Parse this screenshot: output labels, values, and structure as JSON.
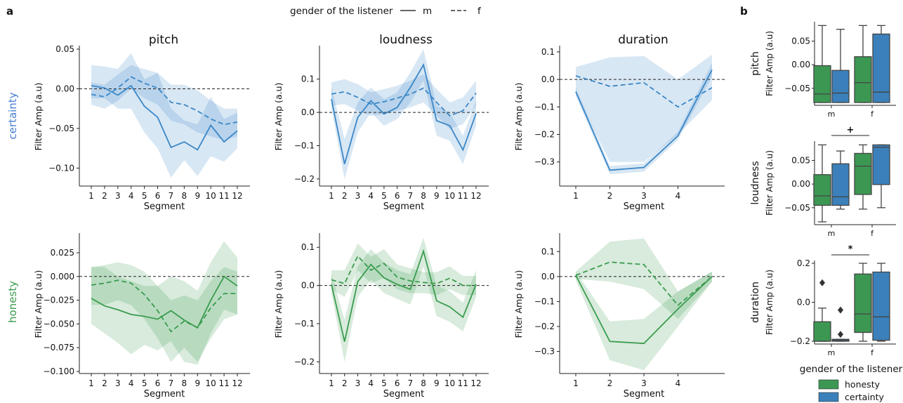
{
  "figure": {
    "panel_a_label": "a",
    "panel_b_label": "b",
    "legend_a": {
      "title": "gender of the listener",
      "solid_label": "m",
      "dashed_label": "f"
    },
    "row_labels": [
      "certainty",
      "honesty"
    ],
    "col_titles": [
      "pitch",
      "loudness",
      "duration"
    ],
    "colors": {
      "certainty": "#3a87c7",
      "honesty": "#3a9c4e",
      "box_honesty": "#3c9753",
      "box_certainty": "#3b80ba"
    },
    "legend_b": {
      "title": "gender of the listener",
      "items": [
        "honesty",
        "certainty"
      ]
    }
  },
  "chart_data": [
    {
      "type": "line",
      "row": "certainty",
      "title": "pitch",
      "xlabel": "Segment",
      "ylabel": "Filter Amp (a.u)",
      "x": [
        1,
        2,
        3,
        4,
        5,
        6,
        7,
        8,
        9,
        10,
        11,
        12
      ],
      "ylim": [
        -0.12,
        0.05
      ],
      "yticks": [
        -0.1,
        -0.05,
        0.0,
        0.05
      ],
      "ytick_labels": [
        "−0.10",
        "−0.05",
        "0.00",
        "0.05"
      ],
      "series": [
        {
          "name": "m",
          "style": "solid",
          "values": [
            0.004,
            0.001,
            -0.008,
            0.004,
            -0.022,
            -0.036,
            -0.074,
            -0.067,
            -0.077,
            -0.046,
            -0.067,
            -0.053
          ],
          "lower": [
            -0.012,
            -0.012,
            -0.025,
            -0.025,
            -0.055,
            -0.075,
            -0.112,
            -0.09,
            -0.11,
            -0.085,
            -0.092,
            -0.075
          ],
          "upper": [
            0.03,
            0.028,
            0.025,
            0.045,
            0.012,
            0.02,
            -0.025,
            -0.04,
            -0.045,
            -0.01,
            -0.038,
            -0.03
          ]
        },
        {
          "name": "f",
          "style": "dashed",
          "values": [
            -0.007,
            -0.01,
            0.001,
            0.015,
            0.007,
            0.001,
            -0.017,
            -0.02,
            -0.028,
            -0.038,
            -0.045,
            -0.042
          ],
          "lower": [
            -0.02,
            -0.025,
            -0.015,
            0.0,
            -0.012,
            -0.02,
            -0.04,
            -0.045,
            -0.055,
            -0.06,
            -0.065,
            -0.06
          ],
          "upper": [
            0.008,
            0.005,
            0.018,
            0.03,
            0.025,
            0.02,
            0.005,
            0.005,
            -0.002,
            -0.015,
            -0.025,
            -0.025
          ]
        }
      ]
    },
    {
      "type": "line",
      "row": "certainty",
      "title": "loudness",
      "xlabel": "Segment",
      "ylabel": "Filter Amp (a.u)",
      "x": [
        1,
        2,
        3,
        4,
        5,
        6,
        7,
        8,
        9,
        10,
        11,
        12
      ],
      "ylim": [
        -0.215,
        0.19
      ],
      "yticks": [
        -0.2,
        -0.1,
        0.0,
        0.1
      ],
      "ytick_labels": [
        "−0.2",
        "−0.1",
        "0.0",
        "0.1"
      ],
      "series": [
        {
          "name": "m",
          "style": "solid",
          "values": [
            0.04,
            -0.155,
            -0.015,
            0.035,
            -0.005,
            0.015,
            0.075,
            0.143,
            -0.025,
            -0.04,
            -0.113,
            -0.003
          ],
          "lower": [
            0.01,
            -0.2,
            -0.06,
            0.0,
            -0.04,
            -0.02,
            0.03,
            0.095,
            -0.07,
            -0.085,
            -0.155,
            -0.04
          ],
          "upper": [
            0.075,
            -0.08,
            0.03,
            0.075,
            0.04,
            0.06,
            0.12,
            0.19,
            0.02,
            0.0,
            -0.07,
            0.035
          ]
        },
        {
          "name": "f",
          "style": "dashed",
          "values": [
            0.055,
            0.062,
            0.045,
            0.025,
            0.032,
            0.043,
            0.055,
            0.073,
            0.03,
            -0.01,
            0.005,
            0.058
          ],
          "lower": [
            0.02,
            0.025,
            0.005,
            -0.01,
            -0.005,
            0.005,
            0.015,
            0.03,
            -0.01,
            -0.05,
            -0.035,
            0.02
          ],
          "upper": [
            0.09,
            0.1,
            0.085,
            0.06,
            0.07,
            0.08,
            0.095,
            0.115,
            0.07,
            0.03,
            0.045,
            0.095
          ]
        }
      ]
    },
    {
      "type": "line",
      "row": "certainty",
      "title": "duration",
      "xlabel": "Segment",
      "ylabel": "Filter Amp (a.u)",
      "x": [
        1,
        2,
        3,
        4,
        5
      ],
      "xticks": [
        1,
        2,
        3,
        4
      ],
      "ylim": [
        -0.38,
        0.11
      ],
      "yticks": [
        -0.3,
        -0.2,
        -0.1,
        0.0,
        0.1
      ],
      "ytick_labels": [
        "−0.3",
        "−0.2",
        "−0.1",
        "0.0",
        "0.1"
      ],
      "series": [
        {
          "name": "m",
          "style": "solid",
          "values": [
            -0.045,
            -0.33,
            -0.32,
            -0.205,
            0.035
          ],
          "lower": [
            -0.06,
            -0.345,
            -0.335,
            -0.22,
            0.01
          ],
          "upper": [
            -0.03,
            -0.315,
            -0.305,
            -0.19,
            0.06
          ]
        },
        {
          "name": "f",
          "style": "dashed",
          "values": [
            0.013,
            -0.025,
            -0.012,
            -0.1,
            -0.03
          ],
          "lower": [
            -0.05,
            -0.3,
            -0.3,
            -0.2,
            -0.075
          ],
          "upper": [
            0.045,
            0.08,
            0.085,
            0.0,
            0.09
          ]
        }
      ]
    },
    {
      "type": "line",
      "row": "honesty",
      "title": "pitch",
      "xlabel": "Segment",
      "ylabel": "Filter Amp (a.u)",
      "x": [
        1,
        2,
        3,
        4,
        5,
        6,
        7,
        8,
        9,
        10,
        11,
        12
      ],
      "ylim": [
        -0.1,
        0.042
      ],
      "yticks": [
        -0.1,
        -0.075,
        -0.05,
        -0.025,
        0.0,
        0.025
      ],
      "ytick_labels": [
        "−0.100",
        "−0.075",
        "−0.050",
        "−0.025",
        "0.000",
        "0.025"
      ],
      "series": [
        {
          "name": "m",
          "style": "solid",
          "values": [
            -0.023,
            -0.031,
            -0.035,
            -0.04,
            -0.042,
            -0.045,
            -0.036,
            -0.046,
            -0.054,
            -0.025,
            0.0,
            -0.01
          ],
          "lower": [
            -0.05,
            -0.06,
            -0.07,
            -0.082,
            -0.072,
            -0.078,
            -0.068,
            -0.09,
            -0.093,
            -0.06,
            -0.035,
            -0.04
          ],
          "upper": [
            0.01,
            0.01,
            0.0,
            -0.005,
            -0.01,
            -0.01,
            0.0,
            -0.005,
            -0.015,
            0.015,
            0.037,
            0.02
          ]
        },
        {
          "name": "f",
          "style": "dashed",
          "values": [
            -0.009,
            -0.007,
            -0.004,
            -0.007,
            -0.019,
            -0.036,
            -0.058,
            -0.047,
            -0.054,
            -0.033,
            -0.018,
            -0.018
          ],
          "lower": [
            -0.03,
            -0.03,
            -0.025,
            -0.03,
            -0.045,
            -0.065,
            -0.09,
            -0.075,
            -0.09,
            -0.065,
            -0.045,
            -0.04
          ],
          "upper": [
            0.01,
            0.012,
            0.015,
            0.012,
            0.005,
            -0.01,
            -0.025,
            -0.02,
            -0.025,
            -0.005,
            0.01,
            0.005
          ]
        }
      ]
    },
    {
      "type": "line",
      "row": "honesty",
      "title": "loudness",
      "xlabel": "Segment",
      "ylabel": "Filter Amp (a.u)",
      "x": [
        1,
        2,
        3,
        4,
        5,
        6,
        7,
        8,
        9,
        10,
        11,
        12
      ],
      "ylim": [
        -0.225,
        0.128
      ],
      "yticks": [
        -0.2,
        -0.1,
        0.0,
        0.1
      ],
      "ytick_labels": [
        "−0.2",
        "−0.1",
        "0.0",
        "0.1"
      ],
      "series": [
        {
          "name": "m",
          "style": "solid",
          "values": [
            0.003,
            -0.147,
            0.01,
            0.055,
            0.02,
            0.003,
            -0.01,
            0.09,
            -0.04,
            -0.056,
            -0.083,
            0.003
          ],
          "lower": [
            -0.02,
            -0.2,
            -0.03,
            0.015,
            -0.02,
            -0.035,
            -0.05,
            0.05,
            -0.08,
            -0.095,
            -0.12,
            -0.03
          ],
          "upper": [
            0.03,
            -0.09,
            0.05,
            0.095,
            0.06,
            0.04,
            0.03,
            0.125,
            0.0,
            -0.015,
            -0.045,
            0.04
          ]
        },
        {
          "name": "f",
          "style": "dashed",
          "values": [
            0.015,
            0.005,
            0.077,
            0.04,
            0.058,
            0.022,
            0.012,
            0.008,
            0.005,
            0.019,
            0.0,
            0.0
          ],
          "lower": [
            -0.01,
            -0.03,
            0.04,
            0.005,
            0.02,
            -0.01,
            -0.02,
            -0.02,
            -0.025,
            -0.01,
            -0.025,
            -0.025
          ],
          "upper": [
            0.04,
            0.04,
            0.11,
            0.075,
            0.095,
            0.055,
            0.045,
            0.035,
            0.035,
            0.05,
            0.025,
            0.025
          ]
        }
      ]
    },
    {
      "type": "line",
      "row": "honesty",
      "title": "duration",
      "xlabel": "Segment",
      "ylabel": "Filter Amp (a.u)",
      "x": [
        1,
        2,
        3,
        4,
        5
      ],
      "xticks": [
        1,
        2,
        3,
        4
      ],
      "ylim": [
        -0.38,
        0.16
      ],
      "yticks": [
        -0.3,
        -0.2,
        -0.1,
        0.0,
        0.1
      ],
      "ytick_labels": [
        "−0.3",
        "−0.2",
        "−0.1",
        "0.0",
        "0.1"
      ],
      "series": [
        {
          "name": "m",
          "style": "solid",
          "values": [
            0.005,
            -0.26,
            -0.268,
            -0.13,
            0.0
          ],
          "lower": [
            -0.015,
            -0.335,
            -0.375,
            -0.2,
            -0.02
          ],
          "upper": [
            0.02,
            -0.18,
            -0.17,
            -0.06,
            0.02
          ]
        },
        {
          "name": "f",
          "style": "dashed",
          "values": [
            0.005,
            0.058,
            0.048,
            -0.115,
            0.0
          ],
          "lower": [
            -0.01,
            -0.02,
            -0.05,
            -0.17,
            -0.02
          ],
          "upper": [
            0.02,
            0.14,
            0.152,
            -0.06,
            0.02
          ]
        }
      ]
    },
    {
      "type": "box",
      "title": "pitch",
      "ylabel": "Filter Amp (a.u)",
      "categories": [
        "m",
        "f"
      ],
      "ylim": [
        -0.08,
        0.085
      ],
      "yticks": [
        -0.05,
        0.0,
        0.05
      ],
      "ytick_labels": [
        "−0.05",
        "0.00",
        "0.05"
      ],
      "series": [
        {
          "name": "honesty",
          "boxes": [
            {
              "whislo": -0.08,
              "q1": -0.08,
              "med": -0.062,
              "q3": -0.002,
              "whishi": 0.083,
              "fliers": []
            },
            {
              "whislo": -0.08,
              "q1": -0.08,
              "med": -0.038,
              "q3": 0.017,
              "whishi": 0.083,
              "fliers": []
            }
          ]
        },
        {
          "name": "certainty",
          "boxes": [
            {
              "whislo": -0.08,
              "q1": -0.08,
              "med": -0.06,
              "q3": -0.012,
              "whishi": 0.075,
              "fliers": []
            },
            {
              "whislo": -0.08,
              "q1": -0.08,
              "med": -0.058,
              "q3": 0.065,
              "whishi": 0.083,
              "fliers": []
            }
          ]
        }
      ]
    },
    {
      "type": "box",
      "title": "loudness",
      "ylabel": "Filter Amp (a.u)",
      "categories": [
        "m",
        "f"
      ],
      "ylim": [
        -0.08,
        0.085
      ],
      "yticks": [
        -0.05,
        0.0,
        0.05
      ],
      "ytick_labels": [
        "−0.05",
        "0.00",
        "0.05"
      ],
      "significance": "+",
      "series": [
        {
          "name": "honesty",
          "boxes": [
            {
              "whislo": -0.08,
              "q1": -0.045,
              "med": -0.025,
              "q3": 0.02,
              "whishi": 0.083,
              "fliers": []
            },
            {
              "whislo": -0.053,
              "q1": -0.022,
              "med": 0.038,
              "q3": 0.065,
              "whishi": 0.083,
              "fliers": []
            }
          ]
        },
        {
          "name": "certainty",
          "boxes": [
            {
              "whislo": -0.053,
              "q1": -0.045,
              "med": -0.027,
              "q3": 0.043,
              "whishi": 0.07,
              "fliers": []
            },
            {
              "whislo": -0.05,
              "q1": -0.001,
              "med": 0.078,
              "q3": 0.083,
              "whishi": 0.083,
              "fliers": []
            }
          ]
        }
      ]
    },
    {
      "type": "box",
      "title": "duration",
      "ylabel": "Filter Amp (a.u)",
      "categories": [
        "m",
        "f"
      ],
      "ylim": [
        -0.2,
        0.2
      ],
      "yticks": [
        -0.2,
        0.0,
        0.2
      ],
      "ytick_labels": [
        "−0.2",
        "0.0",
        "0.2"
      ],
      "significance": "*",
      "series": [
        {
          "name": "honesty",
          "boxes": [
            {
              "whislo": -0.2,
              "q1": -0.2,
              "med": -0.2,
              "q3": -0.1,
              "whishi": -0.03,
              "fliers": [
                0.1
              ]
            },
            {
              "whislo": -0.2,
              "q1": -0.155,
              "med": -0.06,
              "q3": 0.145,
              "whishi": 0.2,
              "fliers": []
            }
          ]
        },
        {
          "name": "certainty",
          "boxes": [
            {
              "whislo": -0.2,
              "q1": -0.2,
              "med": -0.195,
              "q3": -0.19,
              "whishi": -0.19,
              "fliers": [
                -0.04,
                -0.165
              ]
            },
            {
              "whislo": -0.2,
              "q1": -0.195,
              "med": -0.075,
              "q3": 0.155,
              "whishi": 0.2,
              "fliers": []
            }
          ]
        }
      ]
    }
  ]
}
